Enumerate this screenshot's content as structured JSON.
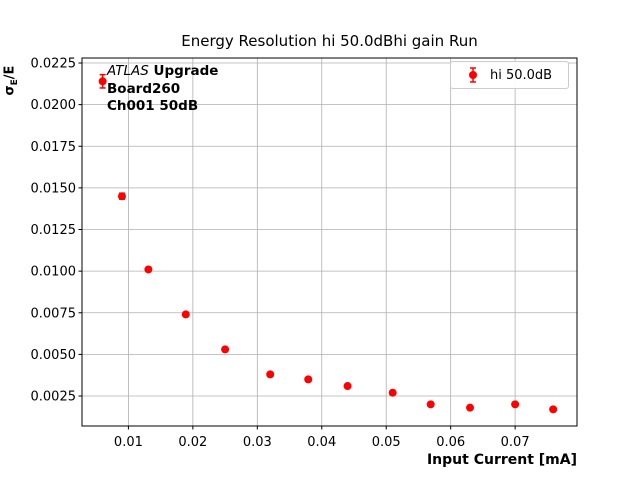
{
  "figure": {
    "title": "Energy Resolution hi 50.0dBhi gain Run",
    "xlabel": "Input Current [mA]",
    "ylabel": {
      "sigma": "σ",
      "sub": "E",
      "rest": "/E"
    },
    "annotation": {
      "line1_italic": "ATLAS",
      "line1_bold": " Upgrade",
      "line2": "Board260",
      "line3": "Ch001 50dB"
    },
    "legend": {
      "label": "hi 50.0dB"
    }
  },
  "colors": {
    "series": "#ff0000",
    "grid": "#b0b0b0",
    "frame": "#000000",
    "tick_text": "#000000",
    "legend_border": "#cccccc",
    "background": "#ffffff"
  },
  "chart_data": {
    "type": "scatter",
    "title": "Energy Resolution hi 50.0dBhi gain Run",
    "xlabel": "Input Current [mA]",
    "ylabel": "σ_E/E",
    "grid": true,
    "legend_position": "upper right",
    "xlim": [
      0.0028,
      0.0796
    ],
    "ylim": [
      0.0007,
      0.0228
    ],
    "x_ticks": {
      "values": [
        0.01,
        0.02,
        0.03,
        0.04,
        0.05,
        0.06,
        0.07
      ],
      "labels": [
        "0.01",
        "0.02",
        "0.03",
        "0.04",
        "0.05",
        "0.06",
        "0.07"
      ]
    },
    "y_ticks": {
      "values": [
        0.0025,
        0.005,
        0.0075,
        0.01,
        0.0125,
        0.015,
        0.0175,
        0.02,
        0.0225
      ],
      "labels": [
        "0.0025",
        "0.0050",
        "0.0075",
        "0.0100",
        "0.0125",
        "0.0150",
        "0.0175",
        "0.0200",
        "0.0225"
      ]
    },
    "series": [
      {
        "name": "hi 50.0dB",
        "color": "#ff0000",
        "marker": "circle-with-errorbars",
        "points": [
          {
            "x": 0.006,
            "y": 0.0214,
            "yerr": 0.0004
          },
          {
            "x": 0.009,
            "y": 0.0145,
            "yerr": 0.00018
          },
          {
            "x": 0.0131,
            "y": 0.0101,
            "yerr": 0.0001
          },
          {
            "x": 0.0189,
            "y": 0.0074,
            "yerr": 8e-05
          },
          {
            "x": 0.025,
            "y": 0.0053,
            "yerr": 6e-05
          },
          {
            "x": 0.032,
            "y": 0.0038,
            "yerr": 5e-05
          },
          {
            "x": 0.0379,
            "y": 0.0035,
            "yerr": 5e-05
          },
          {
            "x": 0.044,
            "y": 0.0031,
            "yerr": 5e-05
          },
          {
            "x": 0.051,
            "y": 0.0027,
            "yerr": 5e-05
          },
          {
            "x": 0.0569,
            "y": 0.002,
            "yerr": 5e-05
          },
          {
            "x": 0.063,
            "y": 0.0018,
            "yerr": 5e-05
          },
          {
            "x": 0.07,
            "y": 0.002,
            "yerr": 5e-05
          },
          {
            "x": 0.0759,
            "y": 0.0017,
            "yerr": 5e-05
          }
        ]
      }
    ]
  }
}
